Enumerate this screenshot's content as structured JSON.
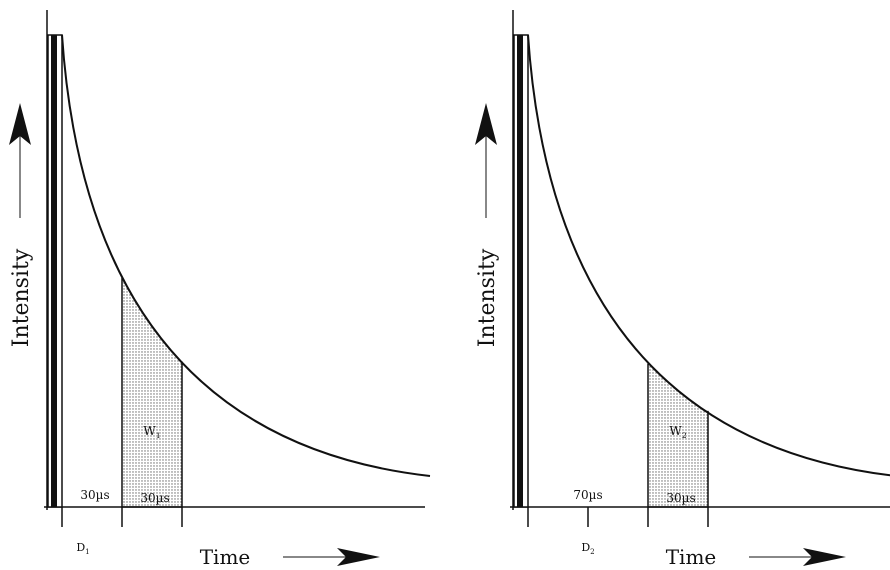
{
  "panels": [
    {
      "y_label": "Intensity",
      "x_label": "Time",
      "delay_label": "30µs",
      "window_label": "30µs",
      "window_name": {
        "base": "W",
        "sub": "1"
      },
      "delay_name": {
        "base": "D",
        "sub": "1"
      }
    },
    {
      "y_label": "Intensity",
      "x_label": "Time",
      "delay_label": "70µs",
      "window_label": "30µs",
      "window_name": {
        "base": "W",
        "sub": "2"
      },
      "delay_name": {
        "base": "D",
        "sub": "2"
      }
    }
  ]
}
